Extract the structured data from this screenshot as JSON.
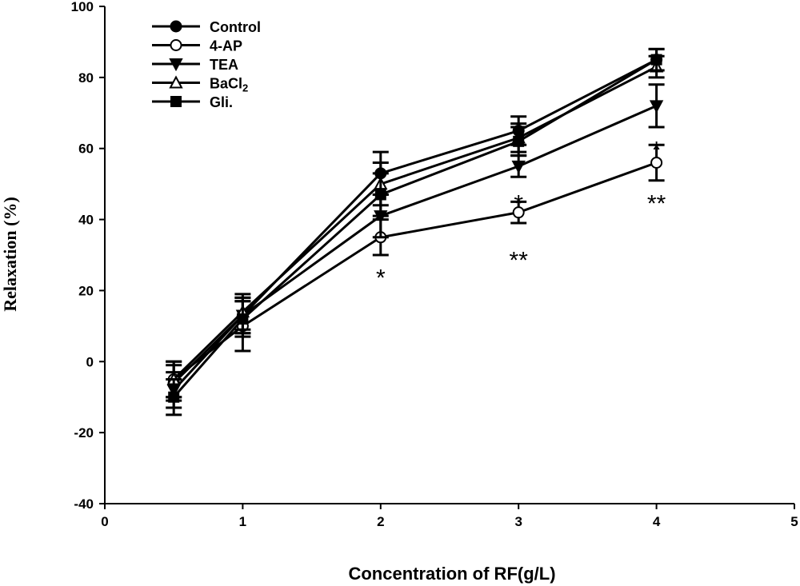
{
  "chart_data": {
    "type": "line",
    "title": "",
    "xlabel": "Concentration of RF(g/L)",
    "ylabel": "Relaxation (%)",
    "xlim": [
      0,
      5
    ],
    "ylim": [
      -40,
      100
    ],
    "xticks": [
      0,
      1,
      2,
      3,
      4,
      5
    ],
    "yticks": [
      -40,
      -20,
      0,
      20,
      40,
      60,
      80,
      100
    ],
    "grid": false,
    "legend_position": "top-left",
    "x": [
      0.5,
      1,
      2,
      3,
      4
    ],
    "series": [
      {
        "name": "Control",
        "marker": "filled-circle",
        "values": [
          -6,
          13,
          53,
          65,
          85
        ],
        "errors": [
          5,
          5,
          6,
          4,
          3
        ]
      },
      {
        "name": "4-AP",
        "marker": "open-circle",
        "values": [
          -5,
          10,
          35,
          42,
          56
        ],
        "errors": [
          5,
          7,
          5,
          3,
          5
        ]
      },
      {
        "name": "TEA",
        "marker": "filled-triangle-down",
        "values": [
          -8,
          13,
          41,
          55,
          72
        ],
        "errors": [
          5,
          5,
          6,
          3,
          6
        ]
      },
      {
        "name": "BaCl2",
        "marker": "open-triangle-up",
        "values": [
          -5,
          14,
          50,
          63,
          83
        ],
        "errors": [
          5,
          5,
          6,
          4,
          3
        ]
      },
      {
        "name": "Gli.",
        "marker": "filled-square",
        "values": [
          -10,
          12,
          47,
          62,
          85
        ],
        "errors": [
          5,
          5,
          6,
          4,
          3
        ]
      }
    ],
    "annotations": [
      {
        "text": "*",
        "x": 2,
        "y": 24
      },
      {
        "text": "*",
        "x": 3,
        "y": 45
      },
      {
        "text": "**",
        "x": 3,
        "y": 29
      },
      {
        "text": "*",
        "x": 4,
        "y": 60
      },
      {
        "text": "**",
        "x": 4,
        "y": 45
      }
    ],
    "colors": {
      "line": "#000000",
      "background": "#ffffff"
    }
  }
}
